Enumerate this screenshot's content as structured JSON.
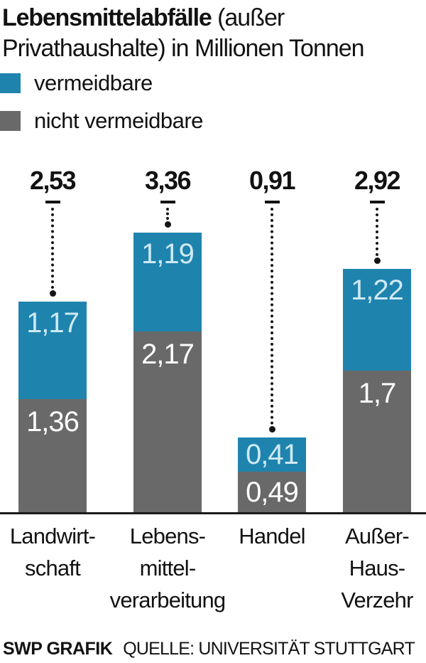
{
  "title": {
    "bold": "Lebensmittelabfälle",
    "line1_rest": " (außer",
    "line2": "Privathaushalte) in Millionen Tonnen"
  },
  "legend": {
    "items": [
      {
        "name": "vermeidbare",
        "label": "vermeidbare",
        "color": "#1e84ad"
      },
      {
        "name": "nicht-vermeidbare",
        "label": "nicht vermeidbare",
        "color": "#696969"
      }
    ]
  },
  "colors": {
    "blue": "#1e84ad",
    "gray": "#696969",
    "blue_value_text": "#cfe9f4",
    "gray_value_text": "#ffffff",
    "ink": "#121212"
  },
  "chart_data": {
    "type": "bar",
    "stacked": true,
    "title": "Lebensmittelabfälle (außer Privathaushalte) in Millionen Tonnen",
    "unit": "Millionen Tonnen",
    "categories": [
      "Landwirtschaft",
      "Lebensmittelverarbeitung",
      "Handel",
      "Außer-Haus-Verzehr"
    ],
    "category_label_lines": [
      [
        "Landwirt-",
        "schaft"
      ],
      [
        "Lebens-",
        "mittel-",
        "verarbeitung"
      ],
      [
        "Handel"
      ],
      [
        "Außer-",
        "Haus-",
        "Verzehr"
      ]
    ],
    "series": [
      {
        "name": "vermeidbare",
        "color": "#1e84ad",
        "values": [
          1.17,
          1.19,
          0.41,
          1.22
        ],
        "labels": [
          "1,17",
          "1,19",
          "0,41",
          "1,22"
        ]
      },
      {
        "name": "nicht vermeidbare",
        "color": "#696969",
        "values": [
          1.36,
          2.17,
          0.49,
          1.7
        ],
        "labels": [
          "1,36",
          "2,17",
          "0,49",
          "1,7"
        ]
      }
    ],
    "totals": [
      2.53,
      3.36,
      0.91,
      2.92
    ],
    "total_labels": [
      "2,53",
      "3,36",
      "0,91",
      "2,92"
    ],
    "ylim": [
      0,
      3.6
    ],
    "grid": false,
    "legend_position": "top-left"
  },
  "footer": {
    "brand": "SWP GRAFIK",
    "source": "QUELLE: UNIVERSITÄT STUTTGART"
  }
}
